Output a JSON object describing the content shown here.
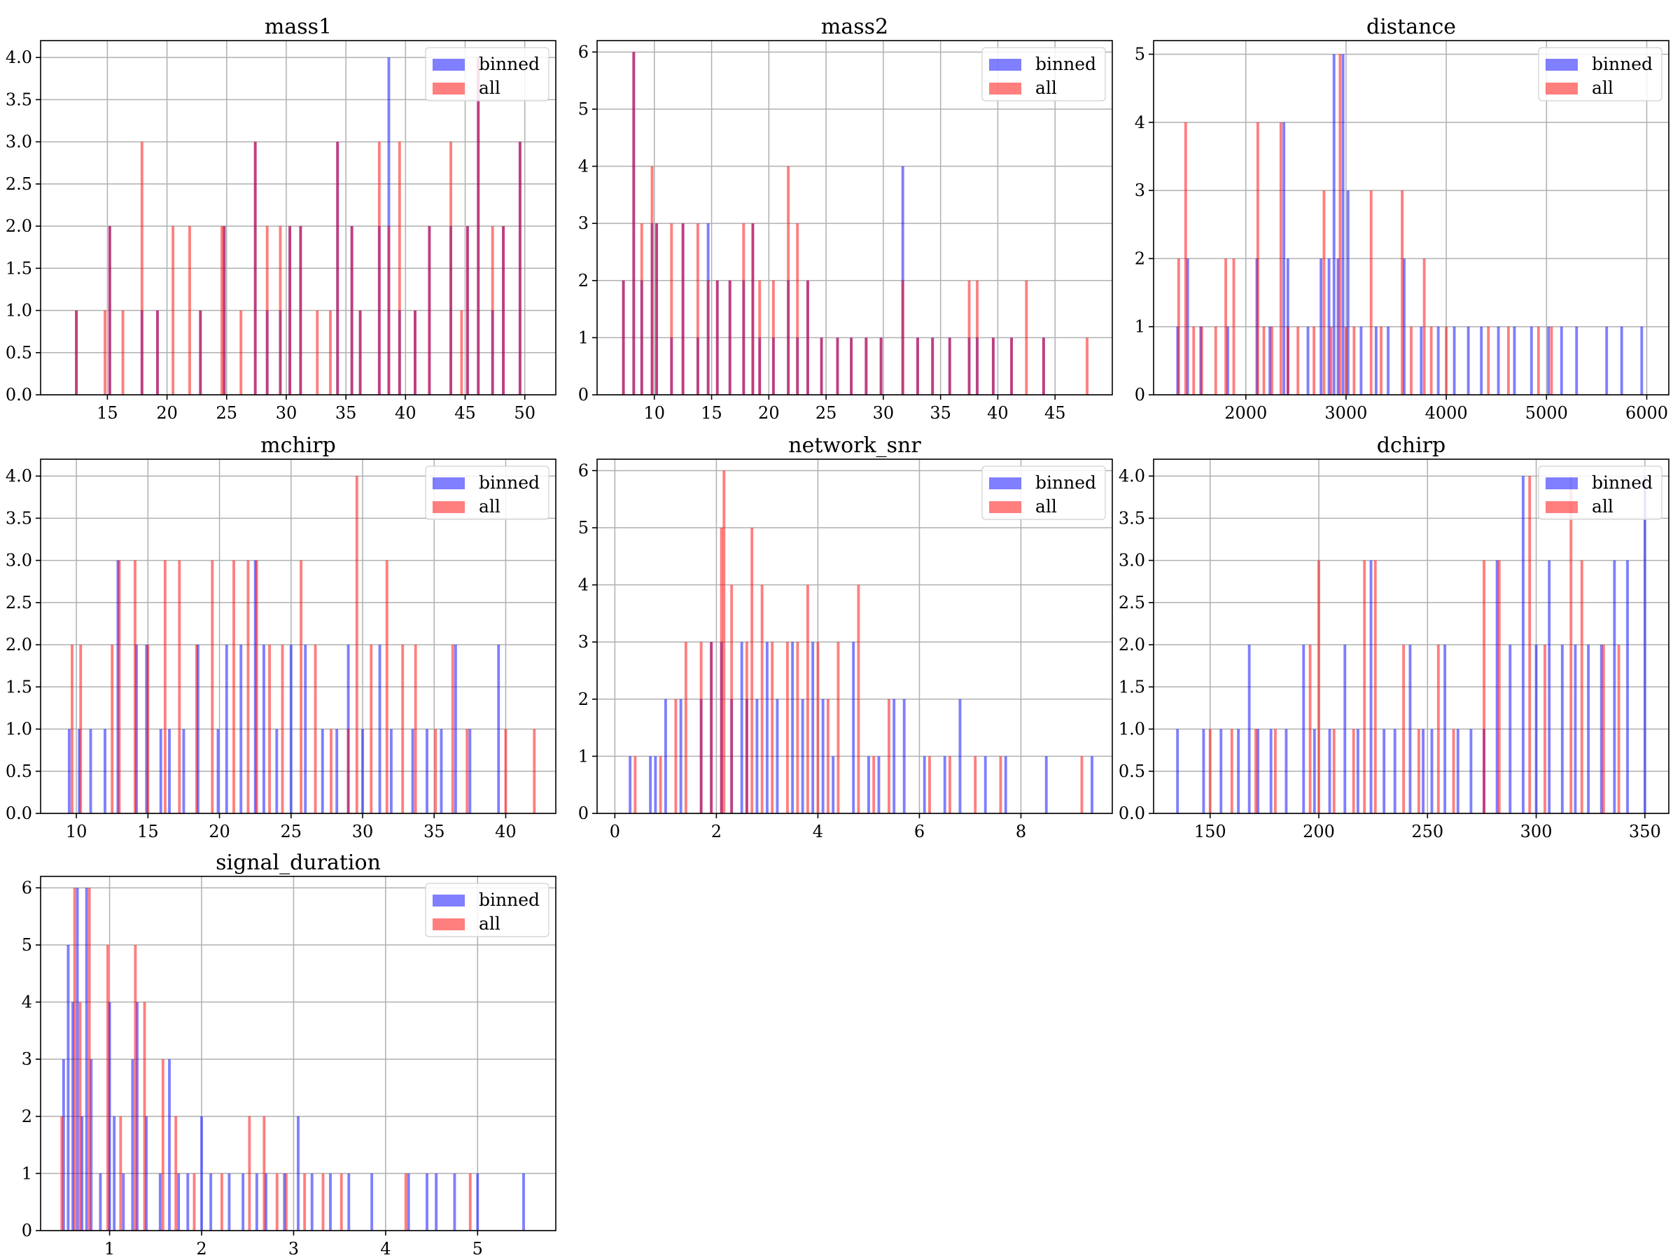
{
  "figure": {
    "title": ""
  },
  "legend_labels": [
    "binned",
    "all"
  ],
  "colors": {
    "binned": "#0000ff",
    "all": "#ff0000",
    "bar_alpha": 0.5,
    "grid": "#b0b0b0",
    "background": "#ffffff"
  },
  "chart_data": [
    {
      "type": "bar",
      "title": "mass1",
      "xlabel": "",
      "ylabel": "",
      "grid": true,
      "legend_placement": "top-right",
      "xlim": [
        9.4,
        52.6
      ],
      "ylim": [
        0,
        4.2
      ],
      "xticks": [
        15,
        20,
        25,
        30,
        35,
        40,
        45,
        50
      ],
      "yticks": [
        0.0,
        0.5,
        1.0,
        1.5,
        2.0,
        2.5,
        3.0,
        3.5,
        4.0
      ],
      "ytick_format": 1,
      "series": [
        {
          "name": "binned",
          "x": [
            12.4,
            15.2,
            17.9,
            19.2,
            22.8,
            24.8,
            27.4,
            28.4,
            29.5,
            30.3,
            31.2,
            34.3,
            35.5,
            36.2,
            37.8,
            38.6,
            39.5,
            40.8,
            42.0,
            43.8,
            45.2,
            46.1,
            47.3,
            48.2,
            49.6
          ],
          "values": [
            1,
            2,
            1,
            1,
            1,
            2,
            3,
            1,
            1,
            2,
            2,
            3,
            2,
            1,
            2,
            4,
            1,
            1,
            2,
            2,
            2,
            4,
            1,
            2,
            3
          ]
        },
        {
          "name": "all",
          "x": [
            12.4,
            14.8,
            15.2,
            16.3,
            17.9,
            19.2,
            20.5,
            21.9,
            22.8,
            24.6,
            24.8,
            26.2,
            27.4,
            28.4,
            29.5,
            30.3,
            31.2,
            32.6,
            33.7,
            34.3,
            35.5,
            36.2,
            37.8,
            38.6,
            39.5,
            40.8,
            42.0,
            43.8,
            44.7,
            45.2,
            46.1,
            47.3,
            48.2,
            49.6
          ],
          "values": [
            1,
            1,
            2,
            1,
            3,
            1,
            2,
            2,
            1,
            2,
            2,
            1,
            3,
            2,
            2,
            2,
            2,
            1,
            1,
            3,
            2,
            1,
            3,
            2,
            3,
            1,
            2,
            3,
            1,
            2,
            4,
            2,
            2,
            3
          ]
        }
      ]
    },
    {
      "type": "bar",
      "title": "mass2",
      "xlabel": "",
      "ylabel": "",
      "grid": true,
      "legend_placement": "top-right",
      "xlim": [
        5.0,
        50.0
      ],
      "ylim": [
        0,
        6.2
      ],
      "xticks": [
        10,
        15,
        20,
        25,
        30,
        35,
        40,
        45
      ],
      "yticks": [
        0,
        1,
        2,
        3,
        4,
        5,
        6
      ],
      "ytick_format": 0,
      "series": [
        {
          "name": "binned",
          "x": [
            7.3,
            8.2,
            8.9,
            9.8,
            10.2,
            11.5,
            12.5,
            13.8,
            14.7,
            15.5,
            16.6,
            17.8,
            18.6,
            19.2,
            20.4,
            21.7,
            22.5,
            23.4,
            24.6,
            26.0,
            27.2,
            28.5,
            29.8,
            31.7,
            33.0,
            34.3,
            35.8,
            37.5,
            38.2,
            39.6,
            41.2,
            44.0
          ],
          "values": [
            2,
            6,
            2,
            3,
            3,
            1,
            3,
            1,
            3,
            2,
            2,
            2,
            3,
            1,
            1,
            2,
            1,
            2,
            1,
            1,
            1,
            1,
            1,
            4,
            1,
            1,
            1,
            1,
            1,
            1,
            1,
            1
          ]
        },
        {
          "name": "all",
          "x": [
            7.3,
            8.2,
            8.9,
            9.8,
            10.2,
            11.5,
            12.5,
            13.8,
            14.7,
            15.5,
            16.6,
            17.8,
            18.6,
            19.2,
            20.4,
            21.7,
            22.5,
            23.4,
            24.6,
            26.0,
            27.2,
            28.5,
            29.8,
            31.7,
            33.0,
            34.3,
            35.8,
            37.5,
            38.2,
            39.6,
            41.2,
            42.5,
            44.0,
            47.8
          ],
          "values": [
            2,
            6,
            3,
            4,
            3,
            3,
            3,
            3,
            2,
            2,
            2,
            3,
            3,
            2,
            2,
            4,
            3,
            2,
            1,
            1,
            1,
            1,
            1,
            2,
            1,
            1,
            1,
            2,
            2,
            1,
            1,
            2,
            1,
            1
          ]
        }
      ]
    },
    {
      "type": "bar",
      "title": "distance",
      "xlabel": "",
      "ylabel": "",
      "grid": true,
      "legend_placement": "top-right",
      "xlim": [
        1080,
        6220
      ],
      "ylim": [
        0,
        5.2
      ],
      "xticks": [
        2000,
        3000,
        4000,
        5000,
        6000
      ],
      "yticks": [
        0,
        1,
        2,
        3,
        4,
        5
      ],
      "ytick_format": 0,
      "series": [
        {
          "name": "binned",
          "x": [
            1320,
            1420,
            1550,
            1820,
            2110,
            2240,
            2380,
            2420,
            2620,
            2750,
            2830,
            2880,
            2920,
            2970,
            3020,
            3150,
            3300,
            3420,
            3580,
            3750,
            3920,
            4080,
            4220,
            4350,
            4520,
            4680,
            4850,
            5020,
            5150,
            5300,
            5600,
            5750,
            5950
          ],
          "values": [
            1,
            2,
            1,
            1,
            2,
            1,
            4,
            2,
            1,
            2,
            2,
            5,
            2,
            5,
            3,
            1,
            1,
            1,
            2,
            1,
            1,
            1,
            1,
            1,
            1,
            1,
            1,
            1,
            1,
            1,
            1,
            1,
            1
          ]
        },
        {
          "name": "all",
          "x": [
            1330,
            1400,
            1480,
            1560,
            1700,
            1800,
            1880,
            2120,
            2180,
            2260,
            2350,
            2420,
            2520,
            2680,
            2780,
            2850,
            2940,
            3000,
            3080,
            3250,
            3350,
            3560,
            3650,
            3780,
            3850,
            4000,
            4420,
            4620,
            4920,
            5050
          ],
          "values": [
            2,
            4,
            1,
            1,
            1,
            2,
            2,
            4,
            1,
            1,
            4,
            1,
            1,
            1,
            3,
            1,
            5,
            1,
            1,
            3,
            1,
            3,
            1,
            2,
            1,
            1,
            1,
            1,
            1,
            1
          ]
        }
      ]
    },
    {
      "type": "bar",
      "title": "mchirp",
      "xlabel": "",
      "ylabel": "",
      "grid": true,
      "legend_placement": "top-right",
      "xlim": [
        7.5,
        43.5
      ],
      "ylim": [
        0,
        4.2
      ],
      "xticks": [
        10,
        15,
        20,
        25,
        30,
        35,
        40
      ],
      "yticks": [
        0.0,
        0.5,
        1.0,
        1.5,
        2.0,
        2.5,
        3.0,
        3.5,
        4.0
      ],
      "ytick_format": 1,
      "series": [
        {
          "name": "binned",
          "x": [
            9.5,
            10.2,
            11.0,
            12.0,
            12.9,
            14.2,
            14.9,
            15.9,
            16.5,
            17.5,
            18.5,
            19.9,
            20.5,
            21.5,
            22.5,
            23.1,
            24.0,
            25.0,
            26.0,
            27.2,
            28.2,
            29.0,
            30.0,
            31.2,
            32.0,
            33.5,
            34.5,
            35.5,
            36.5,
            37.5,
            39.5
          ],
          "values": [
            1,
            1,
            1,
            1,
            3,
            2,
            2,
            1,
            1,
            1,
            2,
            1,
            2,
            2,
            3,
            2,
            1,
            2,
            2,
            1,
            1,
            2,
            1,
            2,
            1,
            1,
            1,
            1,
            2,
            1,
            2
          ]
        },
        {
          "name": "all",
          "x": [
            9.7,
            10.3,
            12.5,
            13.0,
            14.1,
            15.0,
            16.2,
            17.2,
            18.4,
            19.5,
            21.0,
            22.0,
            22.6,
            23.5,
            24.4,
            25.7,
            26.7,
            27.8,
            29.0,
            29.6,
            30.6,
            31.7,
            32.8,
            33.7,
            35.1,
            36.3,
            37.3,
            40.0,
            42.0
          ],
          "values": [
            2,
            2,
            2,
            3,
            3,
            2,
            3,
            3,
            2,
            3,
            3,
            3,
            3,
            2,
            2,
            3,
            2,
            1,
            1,
            4,
            2,
            3,
            2,
            2,
            1,
            2,
            1,
            1,
            1
          ]
        }
      ]
    },
    {
      "type": "bar",
      "title": "network_snr",
      "xlabel": "",
      "ylabel": "",
      "grid": true,
      "legend_placement": "top-right",
      "xlim": [
        -0.35,
        9.8
      ],
      "ylim": [
        0,
        6.2
      ],
      "xticks": [
        0,
        2,
        4,
        6,
        8
      ],
      "yticks": [
        0,
        1,
        2,
        3,
        4,
        5,
        6
      ],
      "ytick_format": 0,
      "series": [
        {
          "name": "binned",
          "x": [
            0.3,
            0.7,
            0.8,
            1.0,
            1.3,
            1.7,
            1.9,
            2.1,
            2.3,
            2.5,
            2.6,
            2.8,
            3.0,
            3.2,
            3.5,
            3.7,
            3.9,
            4.1,
            4.3,
            4.7,
            5.0,
            5.2,
            5.5,
            5.7,
            6.1,
            6.5,
            6.8,
            7.3,
            7.7,
            8.5,
            9.4
          ],
          "values": [
            1,
            1,
            1,
            2,
            2,
            2,
            3,
            3,
            2,
            3,
            2,
            2,
            3,
            2,
            3,
            2,
            3,
            2,
            1,
            3,
            1,
            1,
            2,
            2,
            1,
            1,
            2,
            1,
            1,
            1,
            1
          ]
        },
        {
          "name": "all",
          "x": [
            0.4,
            0.9,
            1.2,
            1.4,
            1.7,
            1.9,
            2.1,
            2.15,
            2.3,
            2.6,
            2.7,
            2.9,
            3.1,
            3.4,
            3.6,
            3.8,
            4.0,
            4.2,
            4.4,
            4.8,
            5.1,
            5.4,
            6.2,
            6.6,
            7.1,
            7.6,
            9.2
          ],
          "values": [
            1,
            1,
            2,
            3,
            3,
            3,
            5,
            6,
            4,
            3,
            5,
            4,
            3,
            3,
            3,
            4,
            3,
            2,
            3,
            4,
            1,
            2,
            1,
            1,
            1,
            1,
            1
          ]
        }
      ]
    },
    {
      "type": "bar",
      "title": "dchirp",
      "xlabel": "",
      "ylabel": "",
      "grid": true,
      "legend_placement": "top-right",
      "xlim": [
        124,
        361
      ],
      "ylim": [
        0,
        4.2
      ],
      "xticks": [
        150,
        200,
        250,
        300,
        350
      ],
      "yticks": [
        0.0,
        0.5,
        1.0,
        1.5,
        2.0,
        2.5,
        3.0,
        3.5,
        4.0
      ],
      "ytick_format": 1,
      "series": [
        {
          "name": "binned",
          "x": [
            135,
            147,
            155,
            163,
            168,
            172,
            178,
            185,
            193,
            198,
            205,
            212,
            218,
            224,
            230,
            235,
            242,
            248,
            252,
            258,
            264,
            270,
            276,
            282,
            288,
            294,
            300,
            306,
            312,
            318,
            324,
            330,
            336,
            342,
            350
          ],
          "values": [
            1,
            1,
            1,
            1,
            2,
            1,
            1,
            1,
            2,
            1,
            1,
            2,
            1,
            3,
            1,
            1,
            2,
            1,
            1,
            2,
            1,
            1,
            1,
            3,
            2,
            4,
            2,
            3,
            2,
            2,
            2,
            2,
            3,
            3,
            4
          ]
        },
        {
          "name": "all",
          "x": [
            150,
            160,
            171,
            180,
            196,
            200,
            207,
            216,
            221,
            226,
            239,
            246,
            255,
            262,
            276,
            283,
            297,
            304,
            316,
            321,
            331,
            338
          ],
          "values": [
            1,
            1,
            1,
            1,
            2,
            3,
            1,
            1,
            3,
            3,
            2,
            1,
            2,
            1,
            3,
            3,
            4,
            2,
            4,
            3,
            2,
            2
          ]
        }
      ]
    },
    {
      "type": "bar",
      "title": "signal_duration",
      "xlabel": "",
      "ylabel": "",
      "grid": true,
      "legend_placement": "top-right",
      "xlim": [
        0.25,
        5.85
      ],
      "ylim": [
        0,
        6.2
      ],
      "xticks": [
        1,
        2,
        3,
        4,
        5
      ],
      "yticks": [
        0,
        1,
        2,
        3,
        4,
        5,
        6
      ],
      "ytick_format": 0,
      "series": [
        {
          "name": "binned",
          "x": [
            0.5,
            0.55,
            0.6,
            0.65,
            0.7,
            0.75,
            0.8,
            0.9,
            1.0,
            1.05,
            1.15,
            1.25,
            1.3,
            1.4,
            1.55,
            1.65,
            1.75,
            1.85,
            2.0,
            2.1,
            2.3,
            2.45,
            2.6,
            2.7,
            2.9,
            3.05,
            3.2,
            3.4,
            3.6,
            3.85,
            4.25,
            4.45,
            4.55,
            4.75,
            5.0,
            5.5
          ],
          "values": [
            3,
            5,
            4,
            6,
            2,
            6,
            3,
            1,
            4,
            2,
            1,
            3,
            4,
            2,
            1,
            3,
            1,
            1,
            2,
            1,
            1,
            1,
            1,
            1,
            1,
            2,
            1,
            1,
            1,
            1,
            1,
            1,
            1,
            1,
            1,
            1
          ]
        },
        {
          "name": "all",
          "x": [
            0.48,
            0.62,
            0.68,
            0.78,
            0.98,
            1.12,
            1.28,
            1.38,
            1.58,
            1.72,
            1.92,
            2.22,
            2.52,
            2.68,
            2.82,
            2.92,
            3.12,
            3.32,
            3.52,
            4.22,
            4.92
          ],
          "values": [
            2,
            6,
            4,
            6,
            5,
            2,
            5,
            4,
            3,
            2,
            1,
            1,
            2,
            2,
            1,
            1,
            1,
            1,
            1,
            1,
            1
          ]
        }
      ]
    }
  ]
}
